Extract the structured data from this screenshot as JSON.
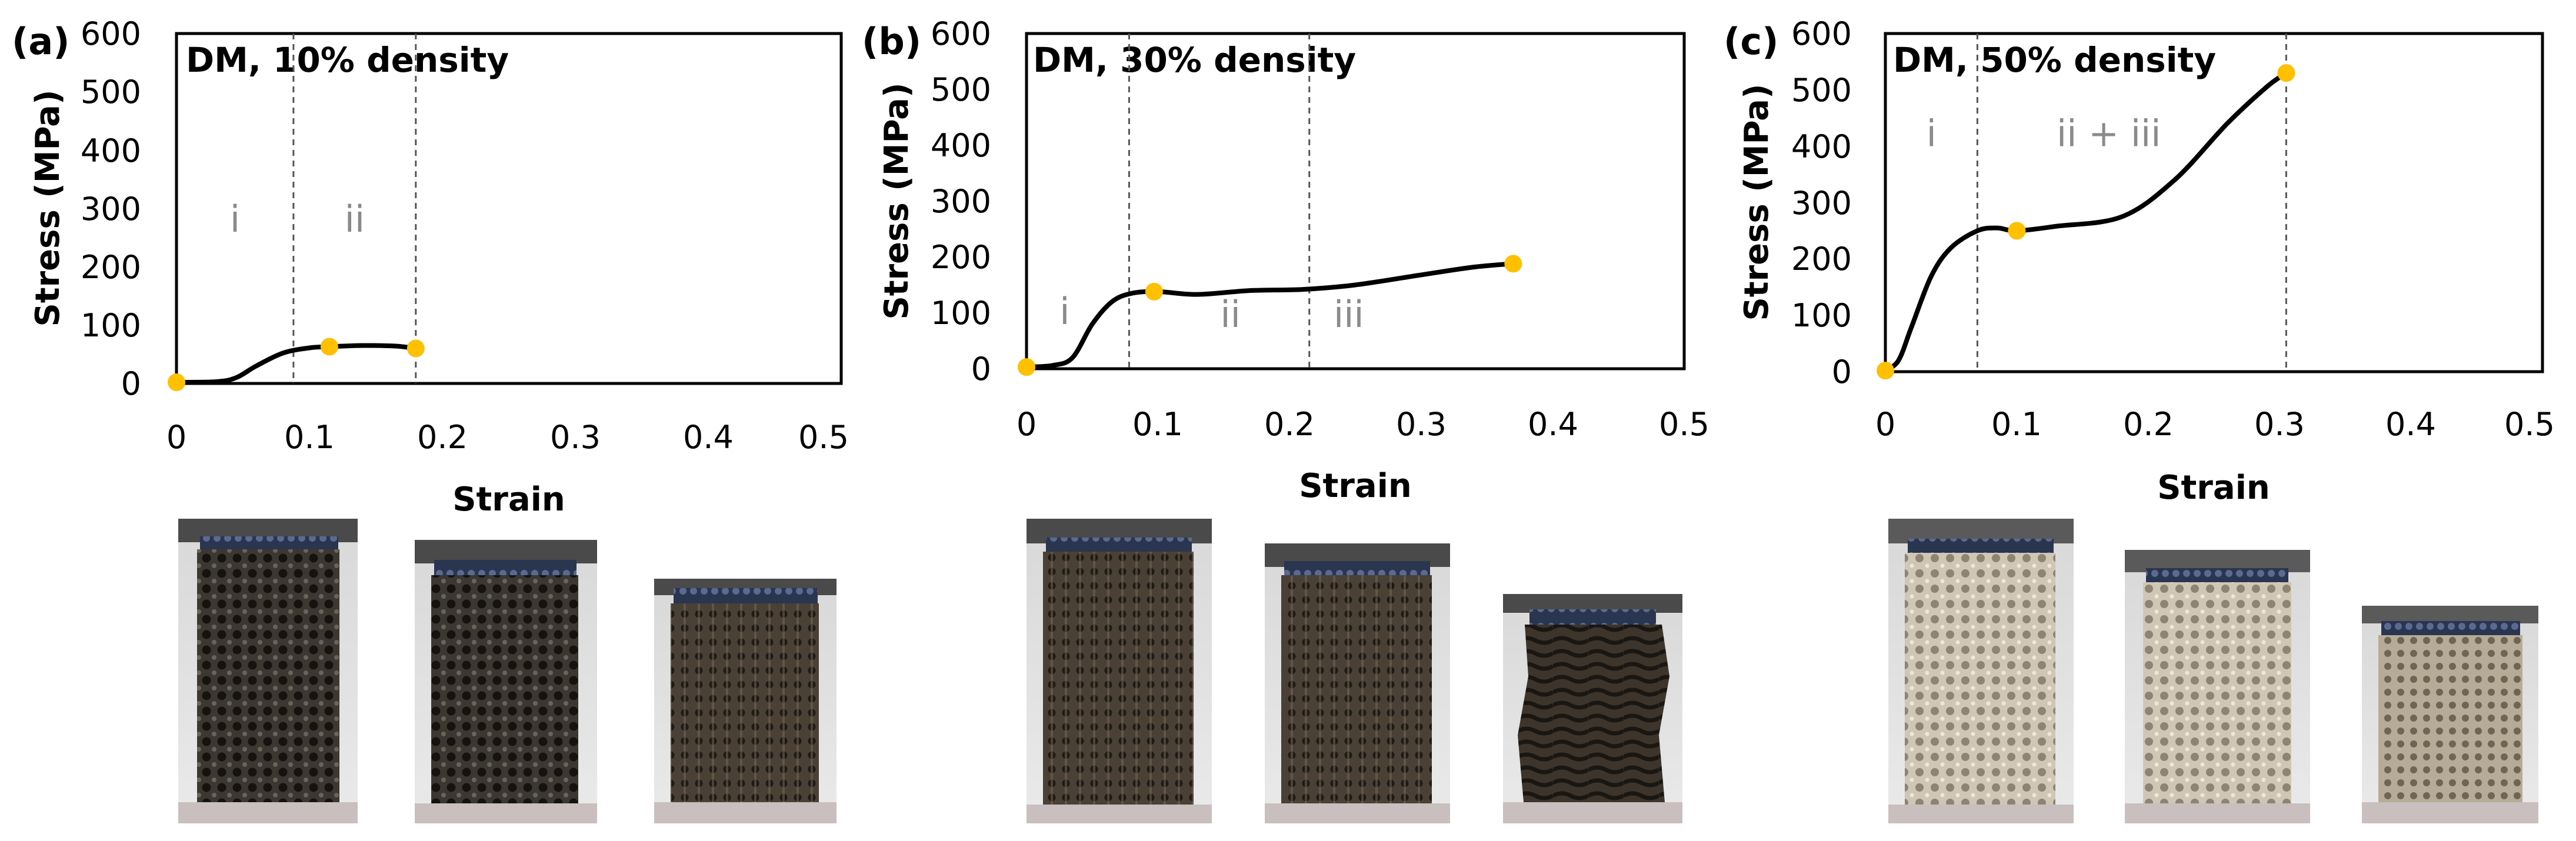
{
  "figure": {
    "colors": {
      "curve": "#000000",
      "marker": "#FFC000",
      "region_text": "#8a8a8a",
      "divider": "#555555"
    }
  },
  "chart_data": [
    {
      "type": "line",
      "panel_label": "(a)",
      "title": "DM, 10% density",
      "xlabel": "Strain",
      "ylabel": "Stress (MPa)",
      "xlim": [
        0,
        0.5
      ],
      "ylim": [
        0,
        600
      ],
      "x_ticks": [
        "0",
        "0.1",
        "0.2",
        "0.3",
        "0.4",
        "0.5"
      ],
      "y_ticks": [
        "0",
        "100",
        "200",
        "300",
        "400",
        "500",
        "600"
      ],
      "series": [
        {
          "name": "DM 10%",
          "x": [
            0,
            0.03,
            0.045,
            0.06,
            0.08,
            0.1,
            0.115,
            0.14,
            0.165,
            0.18
          ],
          "y": [
            2,
            3,
            10,
            30,
            52,
            61,
            63,
            65,
            64,
            60
          ]
        }
      ],
      "markers": [
        {
          "x": 0,
          "y": 2
        },
        {
          "x": 0.115,
          "y": 63
        },
        {
          "x": 0.18,
          "y": 60
        }
      ],
      "dividers": [
        0.088,
        0.18
      ],
      "regions": [
        {
          "label": "i",
          "x": 0.044,
          "y": 260
        },
        {
          "label": "ii",
          "x": 0.134,
          "y": 260
        }
      ],
      "specimen_photos": 3
    },
    {
      "type": "line",
      "panel_label": "(b)",
      "title": "DM, 30% density",
      "xlabel": "Strain",
      "ylabel": "Stress (MPa)",
      "xlim": [
        0,
        0.5
      ],
      "ylim": [
        0,
        600
      ],
      "x_ticks": [
        "0",
        "0.1",
        "0.2",
        "0.3",
        "0.4",
        "0.5"
      ],
      "y_ticks": [
        "0",
        "100",
        "200",
        "300",
        "400",
        "500",
        "600"
      ],
      "series": [
        {
          "name": "DM 30%",
          "x": [
            0,
            0.02,
            0.035,
            0.05,
            0.065,
            0.08,
            0.1,
            0.13,
            0.17,
            0.21,
            0.25,
            0.3,
            0.34,
            0.37
          ],
          "y": [
            3,
            6,
            20,
            80,
            120,
            135,
            138,
            133,
            140,
            142,
            150,
            168,
            182,
            188
          ]
        }
      ],
      "markers": [
        {
          "x": 0,
          "y": 3
        },
        {
          "x": 0.097,
          "y": 138
        },
        {
          "x": 0.37,
          "y": 188
        }
      ],
      "dividers": [
        0.078,
        0.215
      ],
      "regions": [
        {
          "label": "i",
          "x": 0.029,
          "y": 80
        },
        {
          "label": "ii",
          "x": 0.155,
          "y": 75
        },
        {
          "label": "iii",
          "x": 0.245,
          "y": 75
        }
      ],
      "specimen_photos": 3
    },
    {
      "type": "line",
      "panel_label": "(c)",
      "title": "DM, 50% density",
      "xlabel": "Strain",
      "ylabel": "Stress (MPa)",
      "xlim": [
        0,
        0.5
      ],
      "ylim": [
        0,
        600
      ],
      "x_ticks": [
        "0",
        "0.1",
        "0.2",
        "0.3",
        "0.4",
        "0.5"
      ],
      "y_ticks": [
        "0",
        "100",
        "200",
        "300",
        "400",
        "500",
        "600"
      ],
      "series": [
        {
          "name": "DM 50%",
          "x": [
            0,
            0.01,
            0.02,
            0.035,
            0.05,
            0.07,
            0.085,
            0.1,
            0.13,
            0.18,
            0.22,
            0.26,
            0.29,
            0.305
          ],
          "y": [
            2,
            20,
            80,
            170,
            220,
            250,
            255,
            250,
            258,
            275,
            340,
            440,
            505,
            530
          ]
        }
      ],
      "markers": [
        {
          "x": 0,
          "y": 2
        },
        {
          "x": 0.1,
          "y": 250
        },
        {
          "x": 0.305,
          "y": 530
        }
      ],
      "dividers": [
        0.07,
        0.305
      ],
      "regions": [
        {
          "label": "i",
          "x": 0.035,
          "y": 400
        },
        {
          "label": "ii  +  iii",
          "x": 0.17,
          "y": 400
        }
      ],
      "specimen_photos": 3
    }
  ]
}
